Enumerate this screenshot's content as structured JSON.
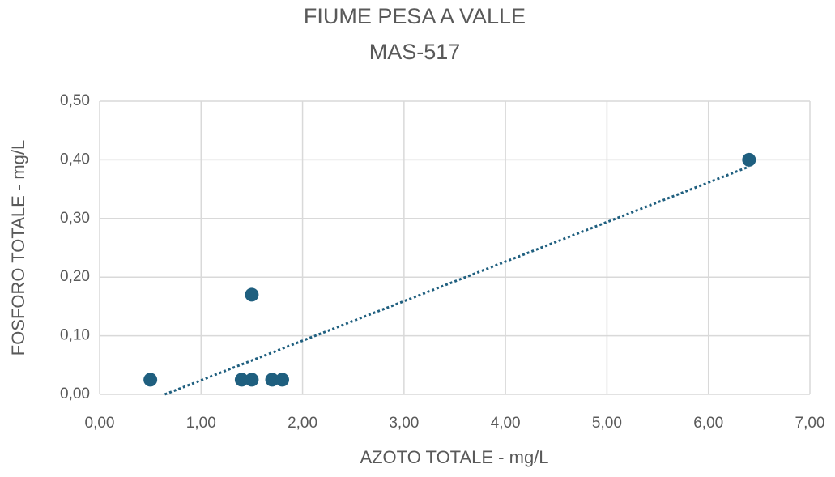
{
  "chart_data": {
    "type": "scatter",
    "title": "FIUME PESA A VALLE",
    "subtitle": "MAS-517",
    "x_label": "AZOTO TOTALE - mg/L",
    "y_label": "FOSFORO TOTALE - mg/L",
    "x": [
      0.5,
      1.4,
      1.5,
      1.7,
      1.8,
      1.5,
      6.4
    ],
    "values": [
      0.025,
      0.025,
      0.025,
      0.025,
      0.025,
      0.17,
      0.4
    ],
    "color": "#1f5f7f",
    "trendline": true,
    "grid": true,
    "xlim": [
      0,
      7
    ],
    "ylim": [
      0,
      0.5
    ],
    "xticks": [
      {
        "value": 0,
        "label": "0,00"
      },
      {
        "value": 1,
        "label": "1,00"
      },
      {
        "value": 2,
        "label": "2,00"
      },
      {
        "value": 3,
        "label": "3,00"
      },
      {
        "value": 4,
        "label": "4,00"
      },
      {
        "value": 5,
        "label": "5,00"
      },
      {
        "value": 6,
        "label": "6,00"
      },
      {
        "value": 7,
        "label": "7,00"
      }
    ],
    "yticks": [
      {
        "value": 0,
        "label": "0,00"
      },
      {
        "value": 0.1,
        "label": "0,10"
      },
      {
        "value": 0.2,
        "label": "0,20"
      },
      {
        "value": 0.3,
        "label": "0,30"
      },
      {
        "value": 0.4,
        "label": "0,40"
      },
      {
        "value": 0.5,
        "label": "0,50"
      }
    ]
  }
}
